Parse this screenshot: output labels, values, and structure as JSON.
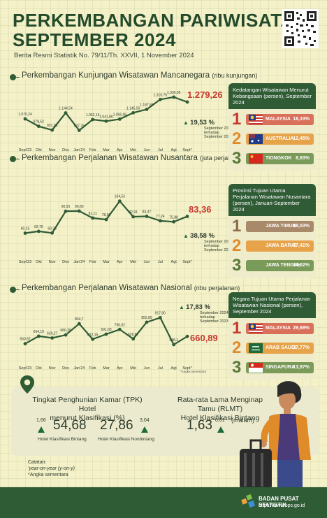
{
  "header": {
    "title_line1": "PERKEMBANGAN PARIWISATA",
    "title_line2": "SEPTEMBER 2024",
    "subtitle": "Berita Resmi Statistik No. 79/11/Th. XXVII, 1 November 2024"
  },
  "sections": [
    {
      "title": "Perkembangan Kunjungan Wisatawan Mancanegara",
      "unit": "(ribu kunjungan)",
      "headline_value": "1.279,26",
      "change_pct": "19,53 %",
      "change_line1": "September 2024",
      "change_line2": "terhadap",
      "change_line3": "September 2023"
    },
    {
      "title": "Perkembangan Perjalanan Wisatawan Nusantara",
      "unit": "(juta perjalanan)",
      "headline_value": "83,36",
      "change_pct": "38,58 %",
      "change_line1": "September 2024",
      "change_line2": "terhadap",
      "change_line3": "September 2023"
    },
    {
      "title": "Perkembangan Perjalanan Wisatawan Nasional",
      "unit": "(ribu perjalanan)",
      "headline_value": "660,89",
      "change_pct": "17,83 %",
      "change_line1": "September 2024",
      "change_line2": "terhadap",
      "change_line3": "September 2023",
      "footnote": "*Angka sementara"
    }
  ],
  "chart_data": [
    {
      "type": "line",
      "title": "Perkembangan Kunjungan Wisatawan Mancanegara (ribu kunjungan)",
      "categories": [
        "Sept'23",
        "Okt",
        "Nov",
        "Des",
        "Jan'24",
        "Feb",
        "Mar",
        "Apr",
        "Mei",
        "Jun",
        "Jul",
        "Agt",
        "Sept*"
      ],
      "values": [
        1070.24,
        978.52,
        931.23,
        1144.54,
        927.75,
        1062.15,
        1041.86,
        1066.96,
        1145.5,
        1187.84,
        1310.76,
        1339.95,
        1279.26
      ],
      "value_labels": [
        "1.070,24",
        "978,52",
        "931,23",
        "1.144,54",
        "927,75",
        "1.062,15",
        "1.041,86",
        "1.066,96",
        "1.145,50",
        "1.187,84",
        "1.310,76",
        "1.339,95",
        "1.279,26"
      ],
      "ylim": [
        880,
        1400
      ],
      "line_color": "#2f5b35"
    },
    {
      "type": "line",
      "title": "Perkembangan Perjalanan Wisatawan Nusantara (juta perjalanan)",
      "categories": [
        "Sept'23",
        "Okt",
        "Nov",
        "Des",
        "Jan'24",
        "Feb",
        "Mar",
        "Apr",
        "Mei",
        "Jun",
        "Jul",
        "Agt",
        "Sept*"
      ],
      "values": [
        60.15,
        62.7,
        60.33,
        90.55,
        90.8,
        81.11,
        78.96,
        104.53,
        82.91,
        83.47,
        77.24,
        75.88,
        83.36
      ],
      "value_labels": [
        "60,15",
        "62,70",
        "60,33",
        "90,55",
        "90,80",
        "81,11",
        "78,96",
        "104,53",
        "82,91",
        "83,47",
        "77,24",
        "75,88",
        "83,36"
      ],
      "ylim": [
        50,
        112
      ],
      "line_color": "#2f5b35"
    },
    {
      "type": "line",
      "title": "Perkembangan Perjalanan Wisatawan Nasional (ribu perjalanan)",
      "categories": [
        "Sept'23",
        "Okt",
        "Nov",
        "Des",
        "Jan'24",
        "Feb",
        "Mar",
        "Apr",
        "Mei",
        "Jun",
        "Jul",
        "Agt",
        "Sept*"
      ],
      "values": [
        560.87,
        664.19,
        639.27,
        680.29,
        834.7,
        622.15,
        691.83,
        756.02,
        626.67,
        855.89,
        917.8,
        548.1,
        660.89
      ],
      "value_labels": [
        "560,87",
        "664,19",
        "639,27",
        "680,29",
        "834,7",
        "622,15",
        "691,83",
        "756,02",
        "626,67",
        "855,89",
        "917,80",
        "548,1",
        "660,89"
      ],
      "ylim": [
        500,
        960
      ],
      "line_color": "#2f5b35"
    }
  ],
  "rank_panels": [
    {
      "heading": "Kedatangan Wisatawan Menurut Kebangsaan (persen), September 2024",
      "items": [
        {
          "rank": "1",
          "name": "MALAYSIA",
          "value": "18,33%",
          "color": "#c8382e",
          "bar": "#d9705a"
        },
        {
          "rank": "2",
          "name": "AUSTRALIA",
          "value": "12,45%",
          "color": "#e08b2a",
          "bar": "#e6a34a"
        },
        {
          "rank": "3",
          "name": "TIONGKOK",
          "value": "8,93%",
          "color": "#5a7a3a",
          "bar": "#7a9a5a"
        }
      ]
    },
    {
      "heading": "Provinsi Tujuan Utama Perjalanan Wisatawan Nusantara (persen), Januari-September 2024",
      "items": [
        {
          "rank": "1",
          "name": "JAWA TIMUR",
          "value": "18,53%",
          "color": "#8a6a4a",
          "bar": "#a88a6a"
        },
        {
          "rank": "2",
          "name": "JAWA BARAT",
          "value": "17,41%",
          "color": "#e08b2a",
          "bar": "#e6a34a"
        },
        {
          "rank": "3",
          "name": "JAWA TENGAH",
          "value": "14,02%",
          "color": "#5a7a3a",
          "bar": "#7a9a5a"
        }
      ]
    },
    {
      "heading": "Negara Tujuan Utama Perjalanan Wisatawan Nasional (persen), September 2024",
      "items": [
        {
          "rank": "1",
          "name": "MALAYSIA",
          "value": "29,68%",
          "color": "#c8382e",
          "bar": "#d9705a"
        },
        {
          "rank": "2",
          "name": "ARAB SAUDI",
          "value": "17,77%",
          "color": "#e08b2a",
          "bar": "#e6a34a"
        },
        {
          "rank": "3",
          "name": "SINGAPURA",
          "value": "13,97%",
          "color": "#5a7a3a",
          "bar": "#7a9a5a"
        }
      ]
    }
  ],
  "hotel": {
    "tpk_title_1": "Tingkat Penghunian Kamar (TPK) Hotel",
    "tpk_title_2": "menurut Klasifikasi (%)",
    "bintang_value": "54,68",
    "bintang_change": "1,66",
    "bintang_label": "Hotel Klasifikasi Bintang",
    "nonbintang_value": "27,86",
    "nonbintang_change": "3,04",
    "nonbintang_label": "Hotel Klasifikasi Nonbintang",
    "rlmt_title_1": "Rata-rata Lama Menginap Tamu (RLMT)",
    "rlmt_title_2": "Hotel Klasifikasi Bintang",
    "rlmt_value": "1,63",
    "rlmt_change": "0,01",
    "rlmt_unit": "(malam)"
  },
  "notes": {
    "heading": "Catatan:",
    "line1": "'year-on-year (y-on-y)",
    "line2": "*Angka sementara"
  },
  "footer": {
    "org": "BADAN PUSAT STATISTIK",
    "url": "https://www.bps.go.id"
  }
}
